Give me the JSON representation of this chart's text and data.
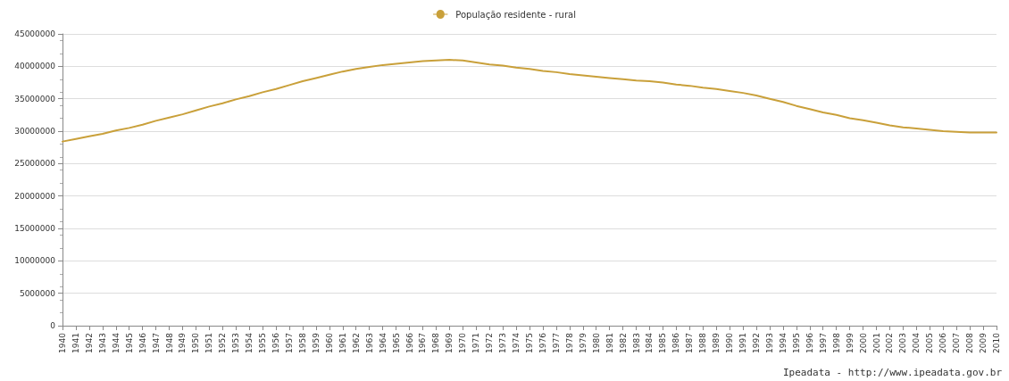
{
  "chart_data": {
    "type": "line",
    "categories": [
      "1940",
      "1941",
      "1942",
      "1943",
      "1944",
      "1945",
      "1946",
      "1947",
      "1948",
      "1949",
      "1950",
      "1951",
      "1952",
      "1953",
      "1954",
      "1955",
      "1956",
      "1957",
      "1958",
      "1959",
      "1960",
      "1961",
      "1962",
      "1963",
      "1964",
      "1965",
      "1966",
      "1967",
      "1968",
      "1969",
      "1970",
      "1971",
      "1972",
      "1973",
      "1974",
      "1975",
      "1976",
      "1977",
      "1978",
      "1979",
      "1980",
      "1981",
      "1982",
      "1983",
      "1984",
      "1985",
      "1986",
      "1987",
      "1988",
      "1989",
      "1990",
      "1991",
      "1992",
      "1993",
      "1994",
      "1995",
      "1996",
      "1997",
      "1998",
      "1999",
      "2000",
      "2001",
      "2002",
      "2003",
      "2004",
      "2005",
      "2006",
      "2007",
      "2008",
      "2009",
      "2010"
    ],
    "series": [
      {
        "name": "População residente - rural",
        "color": "#c9a03a",
        "values": [
          28400000,
          28800000,
          29200000,
          29600000,
          30100000,
          30500000,
          31000000,
          31600000,
          32100000,
          32600000,
          33200000,
          33800000,
          34300000,
          34900000,
          35400000,
          36000000,
          36500000,
          37100000,
          37700000,
          38200000,
          38700000,
          39200000,
          39600000,
          39900000,
          40200000,
          40400000,
          40600000,
          40800000,
          40900000,
          41000000,
          40900000,
          40600000,
          40300000,
          40100000,
          39800000,
          39600000,
          39300000,
          39100000,
          38800000,
          38600000,
          38400000,
          38200000,
          38000000,
          37800000,
          37700000,
          37500000,
          37200000,
          37000000,
          36700000,
          36500000,
          36200000,
          35900000,
          35500000,
          35000000,
          34500000,
          33900000,
          33400000,
          32900000,
          32500000,
          32000000,
          31700000,
          31300000,
          30900000,
          30600000,
          30400000,
          30200000,
          30000000,
          29900000,
          29800000,
          29800000,
          29800000
        ]
      }
    ],
    "ylim": [
      0,
      45000000
    ],
    "yticks": [
      0,
      5000000,
      10000000,
      15000000,
      20000000,
      25000000,
      30000000,
      35000000,
      40000000,
      45000000
    ],
    "grid": "y",
    "legend": "top",
    "marker": "none",
    "line_style": "solid",
    "annotations": [
      "Ipeadata - http://www.ipeadata.gov.br"
    ]
  }
}
